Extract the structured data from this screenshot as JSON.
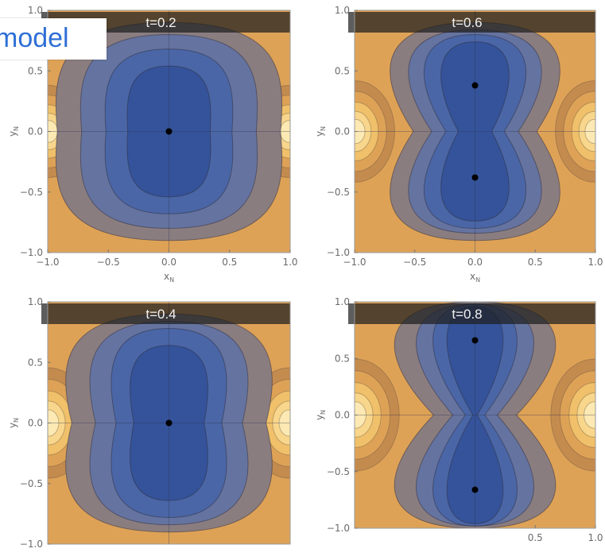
{
  "overlay_label": "model",
  "colors": {
    "core": "#35539a",
    "mid": "#4a66a6",
    "blue_gray": "#6573a0",
    "gray_brown": "#8a7d80",
    "orange_dark": "#c48b4f",
    "orange": "#dea257",
    "orange_light": "#f0c06a",
    "cream": "#fce9b3",
    "title_bar": "#1f1f1f"
  },
  "chart_data": [
    {
      "type": "contour",
      "title": "t=0.2",
      "xlabel": "x_N",
      "ylabel": "y_N",
      "xlim": [
        -1.0,
        1.0
      ],
      "ylim": [
        -1.0,
        1.0
      ],
      "x_ticks": [
        "−1.0",
        "−0.5",
        "0.0",
        "0.5",
        "1.0"
      ],
      "y_ticks": [
        "1.0",
        "0.5",
        "0.0",
        "−0.5",
        "−1.0"
      ],
      "points": [
        [
          0.0,
          0.0
        ]
      ]
    },
    {
      "type": "contour",
      "title": "t=0.6",
      "xlabel": "x_N",
      "ylabel": "y_N",
      "xlim": [
        -1.0,
        1.0
      ],
      "ylim": [
        -1.0,
        1.0
      ],
      "x_ticks": [
        "−1.0",
        "−0.5",
        "0.0",
        "0.5",
        "1.0"
      ],
      "y_ticks": [
        "1.0",
        "0.5",
        "0.0",
        "−0.5",
        "−1.0"
      ],
      "points": [
        [
          0.0,
          0.38
        ],
        [
          0.0,
          -0.38
        ]
      ]
    },
    {
      "type": "contour",
      "title": "t=0.4",
      "xlabel": "",
      "ylabel": "y_N",
      "xlim": [
        -1.0,
        1.0
      ],
      "ylim": [
        -1.0,
        1.0
      ],
      "x_ticks": [],
      "y_ticks": [
        "1.0",
        "0.5",
        "0.0",
        "−0.5",
        "−1.0"
      ],
      "points": [
        [
          0.0,
          0.0
        ]
      ]
    },
    {
      "type": "contour",
      "title": "t=0.8",
      "xlabel": "",
      "ylabel": "y_N",
      "xlim": [
        -1.0,
        1.0
      ],
      "ylim": [
        -1.0,
        1.0
      ],
      "x_ticks": [
        "",
        "",
        "",
        "0.5",
        "1.0"
      ],
      "y_ticks": [
        "1.0",
        "0.5",
        "0.0",
        "−0.5",
        "−1.0"
      ],
      "points": [
        [
          0.0,
          0.66
        ],
        [
          0.0,
          -0.66
        ]
      ]
    }
  ]
}
